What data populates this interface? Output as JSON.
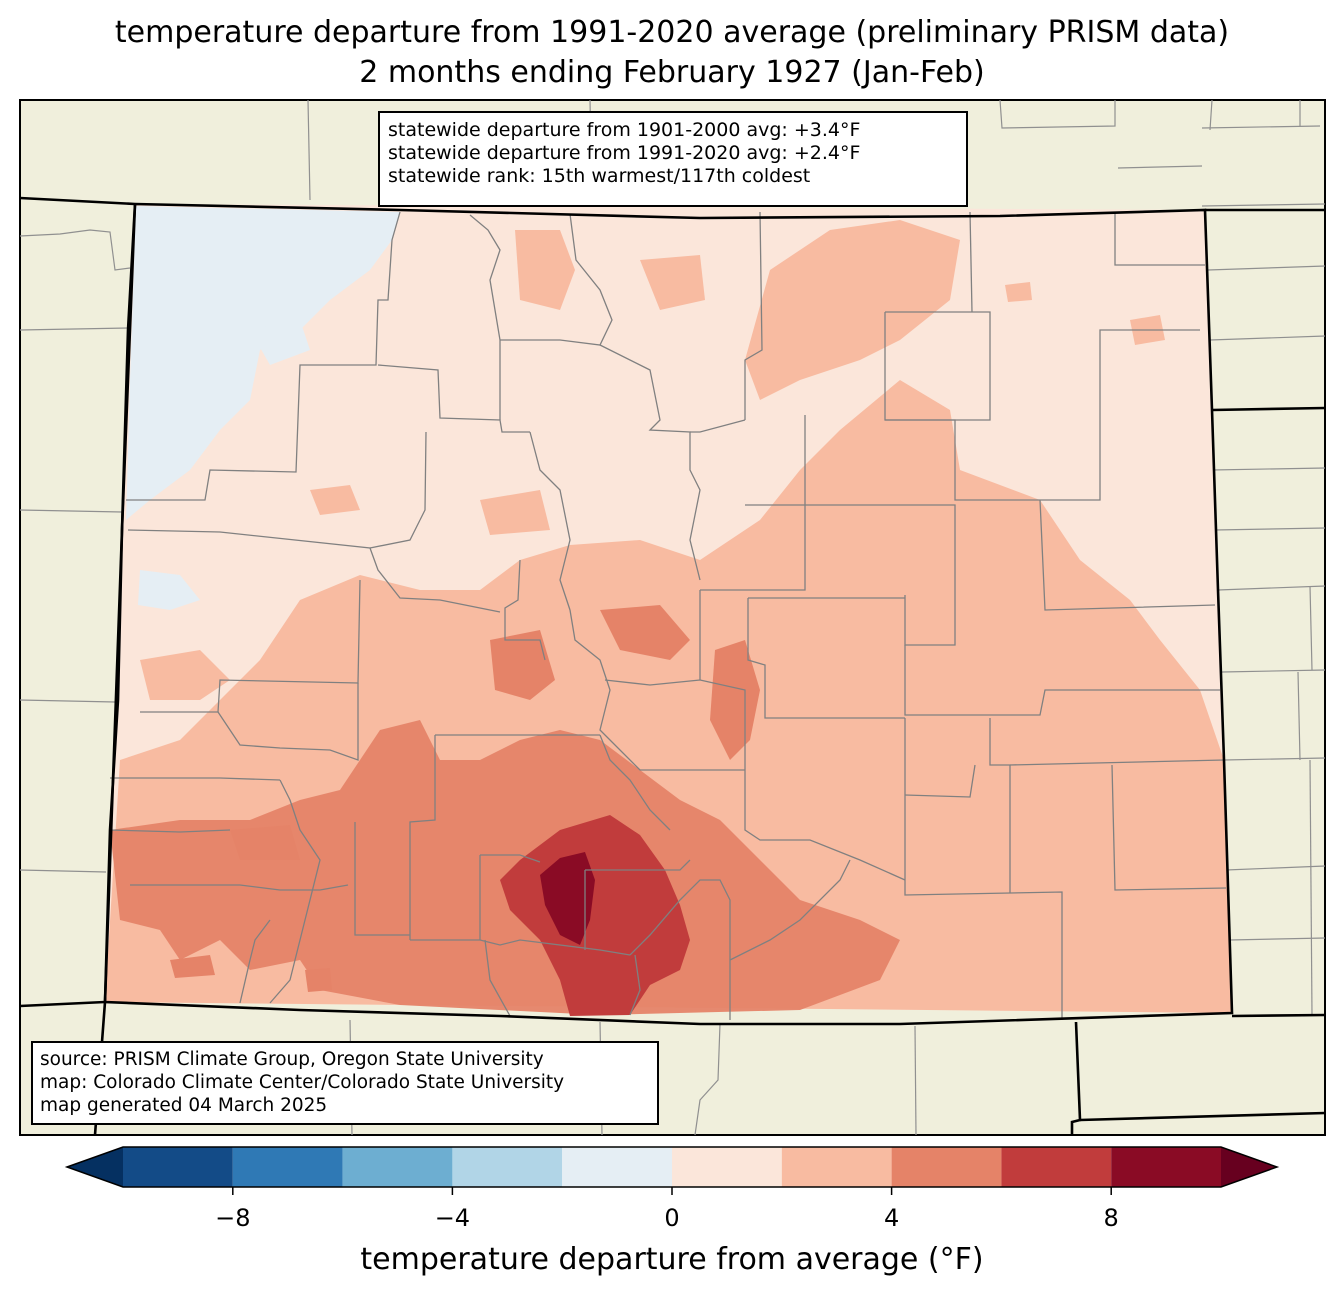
{
  "title_line1": "temperature departure from 1991-2020 average (preliminary PRISM data)",
  "title_line2": "2 months ending February 1927 (Jan-Feb)",
  "stats": {
    "line1": "statewide departure from 1901-2000 avg: +3.4°F",
    "line2": "statewide departure from 1991-2020 avg: +2.4°F",
    "line3": "statewide rank: 15th warmest/117th coldest"
  },
  "source": {
    "line1": "source: PRISM Climate Group, Oregon State University",
    "line2": "map: Colorado Climate Center/Colorado State University",
    "line3": "map generated 04 March 2025"
  },
  "colorbar": {
    "label": "temperature departure from average (°F)",
    "ticks": [
      {
        "value": -8,
        "label": "−8"
      },
      {
        "value": -4,
        "label": "−4"
      },
      {
        "value": 0,
        "label": "0"
      },
      {
        "value": 4,
        "label": "4"
      },
      {
        "value": 8,
        "label": "8"
      }
    ],
    "min": -10,
    "max": 10,
    "bins": [
      {
        "from": -10,
        "to": -8,
        "color": "#134b87"
      },
      {
        "from": -8,
        "to": -6,
        "color": "#2f79b5"
      },
      {
        "from": -6,
        "to": -4,
        "color": "#6daed1"
      },
      {
        "from": -4,
        "to": -2,
        "color": "#b1d5e7"
      },
      {
        "from": -2,
        "to": 0,
        "color": "#e5eef4"
      },
      {
        "from": 0,
        "to": 2,
        "color": "#fbe6da"
      },
      {
        "from": 2,
        "to": 4,
        "color": "#f8bba1"
      },
      {
        "from": 4,
        "to": 6,
        "color": "#e58368"
      },
      {
        "from": 6,
        "to": 8,
        "color": "#c13c3c"
      },
      {
        "from": 8,
        "to": 10,
        "color": "#8a0b25"
      }
    ],
    "under_color": "#053061",
    "over_color": "#67001f"
  },
  "colors": {
    "land": "#f0efdc",
    "state_border": "#000000",
    "county_border": "#808080"
  }
}
